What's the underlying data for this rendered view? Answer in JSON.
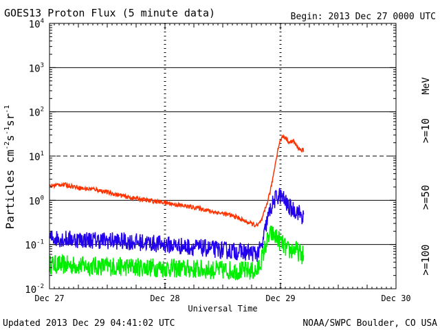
{
  "chart_data": {
    "type": "line",
    "title": "GOES13 Proton Flux (5 minute data)",
    "begin_label": "Begin: 2013 Dec 27 0000 UTC",
    "xlabel": "Universal Time",
    "ylabel": "Particles cm-2s-1sr-1",
    "ylabel_parts": {
      "base": "Particles cm",
      "exp1": "-2",
      "mid1": "s",
      "exp2": "-1",
      "mid2": "sr",
      "exp3": "-1"
    },
    "x_ticks": [
      "Dec 27",
      "Dec 28",
      "Dec 29",
      "Dec 30"
    ],
    "xlim_days": [
      0,
      3
    ],
    "ylim_log10": [
      -2,
      4
    ],
    "y_ticks": [
      {
        "base": "10",
        "exp": "4"
      },
      {
        "base": "10",
        "exp": "3"
      },
      {
        "base": "10",
        "exp": "2"
      },
      {
        "base": "10",
        "exp": "1"
      },
      {
        "base": "10",
        "exp": "0"
      },
      {
        "base": "10",
        "exp": "-1"
      },
      {
        "base": "10",
        "exp": "-2"
      }
    ],
    "solid_gridlines_log10": [
      3,
      2,
      0,
      -1
    ],
    "dashed_gridlines_log10": [
      1
    ],
    "energy_unit": "MeV",
    "series": [
      {
        "name": ">=10",
        "color": "#ff3300",
        "noise": 0.05,
        "points": [
          [
            0,
            0.32
          ],
          [
            0.1,
            0.36
          ],
          [
            0.2,
            0.32
          ],
          [
            0.3,
            0.26
          ],
          [
            0.4,
            0.25
          ],
          [
            0.5,
            0.18
          ],
          [
            0.6,
            0.12
          ],
          [
            0.7,
            0.06
          ],
          [
            0.8,
            0.02
          ],
          [
            0.9,
            -0.02
          ],
          [
            1.0,
            -0.05
          ],
          [
            1.1,
            -0.1
          ],
          [
            1.2,
            -0.14
          ],
          [
            1.3,
            -0.18
          ],
          [
            1.4,
            -0.25
          ],
          [
            1.5,
            -0.3
          ],
          [
            1.6,
            -0.36
          ],
          [
            1.7,
            -0.48
          ],
          [
            1.8,
            -0.58
          ],
          [
            1.84,
            -0.44
          ],
          [
            1.88,
            -0.1
          ],
          [
            1.92,
            0.3
          ],
          [
            1.95,
            0.75
          ],
          [
            1.97,
            1.05
          ],
          [
            1.99,
            1.3
          ],
          [
            2.02,
            1.45
          ],
          [
            2.05,
            1.4
          ],
          [
            2.08,
            1.3
          ],
          [
            2.11,
            1.35
          ],
          [
            2.14,
            1.22
          ],
          [
            2.17,
            1.15
          ],
          [
            2.2,
            1.12
          ]
        ]
      },
      {
        "name": ">=50",
        "color": "#2200ee",
        "noise": 0.2,
        "points": [
          [
            0,
            -0.85
          ],
          [
            0.2,
            -0.88
          ],
          [
            0.4,
            -0.9
          ],
          [
            0.6,
            -0.92
          ],
          [
            0.8,
            -0.95
          ],
          [
            1.0,
            -1.0
          ],
          [
            1.2,
            -1.05
          ],
          [
            1.4,
            -1.1
          ],
          [
            1.6,
            -1.15
          ],
          [
            1.8,
            -1.2
          ],
          [
            1.84,
            -1.05
          ],
          [
            1.88,
            -0.5
          ],
          [
            1.92,
            -0.15
          ],
          [
            1.96,
            0.05
          ],
          [
            1.99,
            0.12
          ],
          [
            2.03,
            0.02
          ],
          [
            2.06,
            -0.12
          ],
          [
            2.1,
            -0.2
          ],
          [
            2.15,
            -0.25
          ],
          [
            2.2,
            -0.4
          ]
        ]
      },
      {
        "name": ">=100",
        "color": "#00ee00",
        "noise": 0.22,
        "points": [
          [
            0,
            -1.45
          ],
          [
            0.3,
            -1.48
          ],
          [
            0.6,
            -1.5
          ],
          [
            0.9,
            -1.52
          ],
          [
            1.2,
            -1.55
          ],
          [
            1.5,
            -1.58
          ],
          [
            1.8,
            -1.6
          ],
          [
            1.84,
            -1.3
          ],
          [
            1.88,
            -0.95
          ],
          [
            1.92,
            -0.75
          ],
          [
            1.97,
            -0.85
          ],
          [
            2.02,
            -1.0
          ],
          [
            2.07,
            -1.15
          ],
          [
            2.12,
            -1.1
          ],
          [
            2.17,
            -1.2
          ],
          [
            2.2,
            -1.25
          ]
        ]
      }
    ]
  },
  "footer": {
    "updated": "Updated 2013 Dec 29 04:41:02 UTC",
    "source": "NOAA/SWPC Boulder, CO USA"
  }
}
